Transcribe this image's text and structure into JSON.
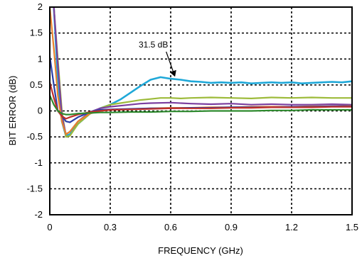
{
  "chart_data": {
    "type": "line",
    "title": "",
    "xlabel": "FREQUENCY (GHz)",
    "ylabel": "BIT ERROR (dB)",
    "xlim": [
      0,
      1.5
    ],
    "ylim": [
      -2,
      2
    ],
    "xticks": [
      0,
      0.3,
      0.6,
      0.9,
      1.2,
      1.5
    ],
    "xtick_labels": [
      "0",
      "0.3",
      "0.6",
      "0.9",
      "1.2",
      "1.5"
    ],
    "yticks": [
      -2,
      -1.5,
      -1,
      -0.5,
      0,
      0.5,
      1,
      1.5,
      2
    ],
    "ytick_labels": [
      "-2",
      "-1.5",
      "-1",
      "-0.5",
      "0",
      "0.5",
      "1",
      "1.5",
      "2"
    ],
    "grid": true,
    "grid_style": "dotted",
    "legend": "none",
    "annotations": [
      {
        "text": "31.5 dB",
        "target_x": 0.62,
        "target_y": 0.62
      }
    ],
    "series": [
      {
        "color": "#1fa8d8",
        "x": [
          0.02,
          0.04,
          0.06,
          0.08,
          0.1,
          0.14,
          0.2,
          0.25,
          0.3,
          0.35,
          0.4,
          0.45,
          0.5,
          0.55,
          0.6,
          0.65,
          0.7,
          0.75,
          0.8,
          0.85,
          0.9,
          0.95,
          1.0,
          1.05,
          1.1,
          1.15,
          1.2,
          1.25,
          1.3,
          1.35,
          1.4,
          1.45,
          1.5
        ],
        "y": [
          2.0,
          0.6,
          -0.2,
          -0.48,
          -0.45,
          -0.25,
          -0.05,
          0.05,
          0.12,
          0.22,
          0.35,
          0.48,
          0.6,
          0.65,
          0.62,
          0.6,
          0.57,
          0.56,
          0.54,
          0.55,
          0.54,
          0.55,
          0.53,
          0.54,
          0.55,
          0.54,
          0.55,
          0.53,
          0.54,
          0.55,
          0.56,
          0.55,
          0.57
        ]
      },
      {
        "color": "#9dbb3a",
        "x": [
          0.02,
          0.04,
          0.06,
          0.08,
          0.1,
          0.14,
          0.2,
          0.25,
          0.3,
          0.35,
          0.4,
          0.45,
          0.5,
          0.55,
          0.6,
          0.65,
          0.7,
          0.8,
          0.9,
          1.0,
          1.1,
          1.2,
          1.3,
          1.4,
          1.5
        ],
        "y": [
          2.0,
          1.0,
          0.0,
          -0.5,
          -0.48,
          -0.25,
          -0.05,
          0.05,
          0.12,
          0.15,
          0.18,
          0.21,
          0.23,
          0.25,
          0.25,
          0.24,
          0.25,
          0.26,
          0.25,
          0.24,
          0.26,
          0.25,
          0.26,
          0.25,
          0.25
        ]
      },
      {
        "color": "#7b3fa0",
        "x": [
          0.02,
          0.04,
          0.06,
          0.08,
          0.1,
          0.14,
          0.2,
          0.25,
          0.3,
          0.35,
          0.4,
          0.45,
          0.5,
          0.6,
          0.7,
          0.8,
          0.9,
          1.0,
          1.1,
          1.2,
          1.3,
          1.4,
          1.5
        ],
        "y": [
          2.0,
          0.9,
          -0.1,
          -0.45,
          -0.4,
          -0.2,
          -0.02,
          0.05,
          0.08,
          0.1,
          0.12,
          0.14,
          0.15,
          0.16,
          0.14,
          0.13,
          0.14,
          0.12,
          0.13,
          0.12,
          0.12,
          0.13,
          0.12
        ]
      },
      {
        "color": "#e8822a",
        "x": [
          0.0,
          0.02,
          0.04,
          0.06,
          0.08,
          0.1,
          0.14,
          0.2,
          0.25,
          0.3,
          0.4,
          0.5,
          0.6,
          0.7,
          0.8,
          0.9,
          1.0,
          1.1,
          1.2,
          1.3,
          1.4,
          1.5
        ],
        "y": [
          2.0,
          1.2,
          0.3,
          -0.2,
          -0.45,
          -0.4,
          -0.2,
          -0.05,
          0.0,
          0.02,
          0.03,
          0.05,
          0.06,
          0.06,
          0.07,
          0.07,
          0.08,
          0.08,
          0.08,
          0.09,
          0.09,
          0.1
        ]
      },
      {
        "color": "#2a3fa8",
        "x": [
          0.0,
          0.02,
          0.04,
          0.06,
          0.08,
          0.1,
          0.14,
          0.2,
          0.25,
          0.3,
          0.4,
          0.5,
          0.6,
          0.7,
          0.8,
          0.9,
          1.0,
          1.1,
          1.2,
          1.3,
          1.4,
          1.5
        ],
        "y": [
          1.05,
          0.5,
          0.0,
          -0.1,
          -0.2,
          -0.22,
          -0.12,
          -0.02,
          0.02,
          0.03,
          0.04,
          0.05,
          0.05,
          0.06,
          0.06,
          0.07,
          0.07,
          0.07,
          0.08,
          0.08,
          0.09,
          0.09
        ]
      },
      {
        "color": "#c0302a",
        "x": [
          0.0,
          0.02,
          0.04,
          0.06,
          0.08,
          0.1,
          0.14,
          0.2,
          0.25,
          0.3,
          0.4,
          0.5,
          0.6,
          0.7,
          0.8,
          0.9,
          1.0,
          1.1,
          1.2,
          1.3,
          1.4,
          1.5
        ],
        "y": [
          0.55,
          0.25,
          0.0,
          -0.1,
          -0.15,
          -0.12,
          -0.07,
          -0.02,
          0.0,
          0.02,
          0.03,
          0.04,
          0.05,
          0.05,
          0.05,
          0.06,
          0.06,
          0.07,
          0.07,
          0.07,
          0.08,
          0.08
        ]
      },
      {
        "color": "#2e8a2e",
        "x": [
          0.0,
          0.02,
          0.04,
          0.06,
          0.08,
          0.1,
          0.14,
          0.2,
          0.25,
          0.3,
          0.4,
          0.5,
          0.6,
          0.7,
          0.8,
          0.9,
          1.0,
          1.1,
          1.2,
          1.3,
          1.4,
          1.5
        ],
        "y": [
          0.3,
          0.12,
          0.0,
          -0.05,
          -0.07,
          -0.07,
          -0.05,
          -0.04,
          -0.03,
          -0.03,
          -0.02,
          -0.02,
          -0.01,
          -0.01,
          0.0,
          0.0,
          0.0,
          0.01,
          0.01,
          0.02,
          0.02,
          0.02
        ]
      }
    ]
  }
}
